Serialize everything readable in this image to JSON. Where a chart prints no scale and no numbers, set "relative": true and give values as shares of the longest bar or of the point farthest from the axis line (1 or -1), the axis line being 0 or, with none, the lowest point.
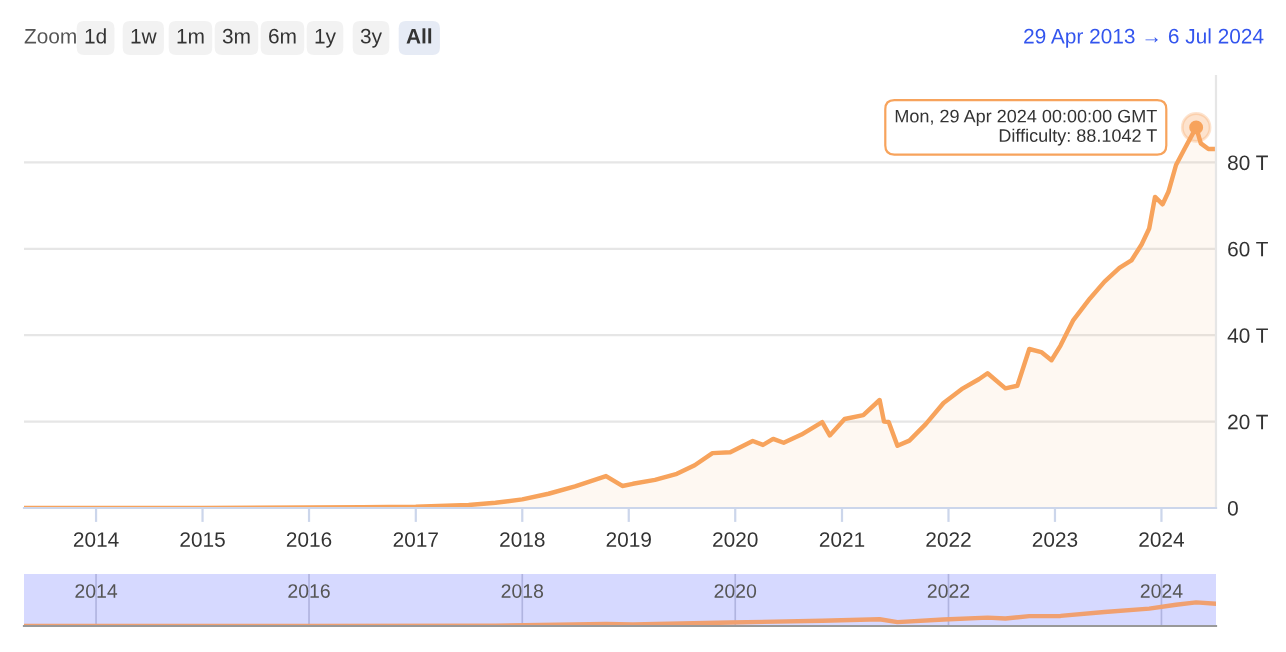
{
  "chart_data": [
    {
      "type": "area",
      "title": null,
      "annotations": [
        "Zoom",
        "1d",
        "1w",
        "1m",
        "3m",
        "6m",
        "1y",
        "3y",
        "All",
        "29 Apr 2013 → 6 Jul 2024",
        {
          "text": "Mon, 29 Apr 2024 00:00:00 GMT\nDifficulty: 88.1042 T",
          "x": "2024-04-29",
          "y": 88.1042
        }
      ],
      "series": [
        {
          "color": "#f7a35c",
          "x": [
            "2013-04-29",
            "2014-01-01",
            "2015-01-01",
            "2016-01-01",
            "2016-07-01",
            "2017-01-01",
            "2017-07-01",
            "2017-10-01",
            "2018-01-01",
            "2018-04-01",
            "2018-07-01",
            "2018-10-15",
            "2018-12-10",
            "2019-01-15",
            "2019-04-01",
            "2019-06-15",
            "2019-08-15",
            "2019-10-15",
            "2019-12-15",
            "2020-03-01",
            "2020-04-05",
            "2020-05-10",
            "2020-06-15",
            "2020-08-15",
            "2020-10-25",
            "2020-11-20",
            "2021-01-10",
            "2021-03-15",
            "2021-05-10",
            "2021-05-25",
            "2021-06-10",
            "2021-07-10",
            "2021-08-20",
            "2021-10-15",
            "2021-12-15",
            "2022-02-15",
            "2022-04-15",
            "2022-05-15",
            "2022-07-15",
            "2022-08-25",
            "2022-10-05",
            "2022-11-15",
            "2022-12-20",
            "2023-01-20",
            "2023-03-05",
            "2023-05-01",
            "2023-06-20",
            "2023-08-10",
            "2023-09-20",
            "2023-10-25",
            "2023-11-20",
            "2023-12-10",
            "2024-01-05",
            "2024-01-25",
            "2024-02-20",
            "2024-03-20",
            "2024-04-29",
            "2024-05-15",
            "2024-06-10",
            "2024-07-06"
          ],
          "values": [
            0,
            0,
            0,
            0.1,
            0.2,
            0.3,
            0.7,
            1.2,
            2,
            3.3,
            5,
            7.4,
            5.1,
            5.6,
            6.5,
            7.9,
            9.9,
            12.7,
            12.9,
            15.5,
            14.6,
            16,
            15.1,
            17,
            19.9,
            16.8,
            20.6,
            21.5,
            25,
            20,
            19.9,
            14.4,
            15.6,
            19.4,
            24.3,
            27.5,
            29.8,
            31.2,
            27.7,
            28.3,
            36.8,
            36.1,
            34.2,
            37.6,
            43.5,
            48.5,
            52.4,
            55.6,
            57.3,
            61,
            64.7,
            72,
            70.3,
            73.2,
            79.4,
            83.1,
            88.1042,
            84.4,
            83.1,
            83.1
          ]
        }
      ],
      "xlim": [
        "2013-04-29",
        "2024-07-06"
      ],
      "xticks": [
        {
          "value": "2014-01-01",
          "label": "2014"
        },
        {
          "value": "2015-01-01",
          "label": "2015"
        },
        {
          "value": "2016-01-01",
          "label": "2016"
        },
        {
          "value": "2017-01-01",
          "label": "2017"
        },
        {
          "value": "2018-01-01",
          "label": "2018"
        },
        {
          "value": "2019-01-01",
          "label": "2019"
        },
        {
          "value": "2020-01-01",
          "label": "2020"
        },
        {
          "value": "2021-01-01",
          "label": "2021"
        },
        {
          "value": "2022-01-01",
          "label": "2022"
        },
        {
          "value": "2023-01-01",
          "label": "2023"
        },
        {
          "value": "2024-01-01",
          "label": "2024"
        }
      ],
      "ylim": [
        0,
        100
      ],
      "yticks": [
        0,
        {
          "value": 20,
          "label": "20 T"
        },
        {
          "value": 40,
          "label": "40 T"
        },
        {
          "value": 60,
          "label": "60 T"
        },
        {
          "value": 80,
          "label": "80 T"
        }
      ],
      "grid": "y"
    },
    {
      "type": "line",
      "relative": true,
      "tick_labels": "x",
      "series": [
        {
          "color": "#f0a070",
          "x": [
            "2013-04-29",
            "2016-01-01",
            "2017-10-01",
            "2018-10-15",
            "2019-01-15",
            "2019-12-15",
            "2020-10-25",
            "2021-05-10",
            "2021-07-10",
            "2021-12-15",
            "2022-05-15",
            "2022-07-15",
            "2022-10-05",
            "2023-01-20",
            "2023-06-20",
            "2023-11-20",
            "2024-02-20",
            "2024-04-29",
            "2024-07-06"
          ],
          "values": [
            0,
            0.001,
            0.014,
            0.084,
            0.064,
            0.146,
            0.226,
            0.284,
            0.163,
            0.276,
            0.354,
            0.314,
            0.418,
            0.427,
            0.595,
            0.734,
            0.901,
            1,
            0.943
          ]
        }
      ],
      "xlim": [
        "2013-04-29",
        "2024-07-06"
      ],
      "xticks": [
        {
          "value": "2014-01-01",
          "label": "2014"
        },
        {
          "value": "2016-01-01",
          "label": "2016"
        },
        {
          "value": "2018-01-01",
          "label": "2018"
        },
        {
          "value": "2020-01-01",
          "label": "2020"
        },
        {
          "value": "2022-01-01",
          "label": "2022"
        },
        {
          "value": "2024-01-01",
          "label": "2024"
        }
      ],
      "grid": "x"
    }
  ]
}
